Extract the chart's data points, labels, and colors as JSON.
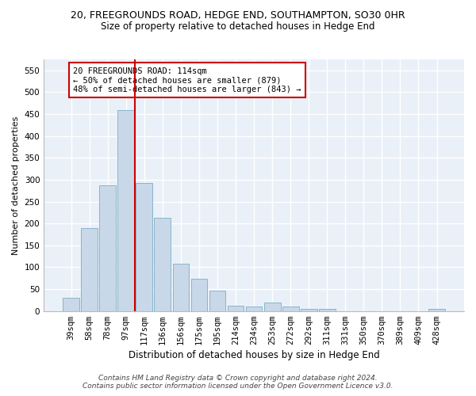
{
  "title": "20, FREEGROUNDS ROAD, HEDGE END, SOUTHAMPTON, SO30 0HR",
  "subtitle": "Size of property relative to detached houses in Hedge End",
  "xlabel": "Distribution of detached houses by size in Hedge End",
  "ylabel": "Number of detached properties",
  "bar_color": "#c8d8e8",
  "bar_edge_color": "#8ab4cc",
  "background_color": "#eaf0f8",
  "grid_color": "#ffffff",
  "categories": [
    "39sqm",
    "58sqm",
    "78sqm",
    "97sqm",
    "117sqm",
    "136sqm",
    "156sqm",
    "175sqm",
    "195sqm",
    "214sqm",
    "234sqm",
    "253sqm",
    "272sqm",
    "292sqm",
    "311sqm",
    "331sqm",
    "350sqm",
    "370sqm",
    "389sqm",
    "409sqm",
    "428sqm"
  ],
  "values": [
    30,
    190,
    287,
    460,
    292,
    213,
    108,
    73,
    46,
    13,
    11,
    20,
    10,
    5,
    5,
    0,
    0,
    0,
    0,
    0,
    5
  ],
  "ylim": [
    0,
    575
  ],
  "yticks": [
    0,
    50,
    100,
    150,
    200,
    250,
    300,
    350,
    400,
    450,
    500,
    550
  ],
  "vline_x": 3.5,
  "vline_color": "#cc0000",
  "annotation_line1": "20 FREEGROUNDS ROAD: 114sqm",
  "annotation_line2": "← 50% of detached houses are smaller (879)",
  "annotation_line3": "48% of semi-detached houses are larger (843) →",
  "annotation_box_color": "#ffffff",
  "annotation_box_edge": "#cc0000",
  "footer_line1": "Contains HM Land Registry data © Crown copyright and database right 2024.",
  "footer_line2": "Contains public sector information licensed under the Open Government Licence v3.0.",
  "title_fontsize": 9,
  "subtitle_fontsize": 8.5,
  "xlabel_fontsize": 8.5,
  "ylabel_fontsize": 8,
  "tick_fontsize": 7.5,
  "annotation_fontsize": 7.5,
  "footer_fontsize": 6.5
}
